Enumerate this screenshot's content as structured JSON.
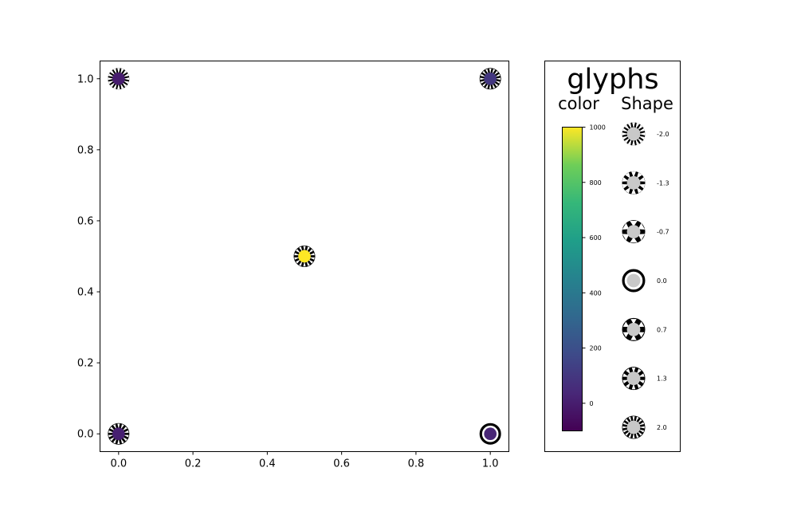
{
  "chart_data": [
    {
      "type": "scatter",
      "title": "",
      "xlabel": "",
      "ylabel": "",
      "xlim": [
        -0.05,
        1.05
      ],
      "ylim": [
        -0.05,
        1.05
      ],
      "grid": false,
      "x_ticks": [
        "0.0",
        "0.2",
        "0.4",
        "0.6",
        "0.8",
        "1.0"
      ],
      "y_ticks": [
        "0.0",
        "0.2",
        "0.4",
        "0.6",
        "0.8",
        "1.0"
      ],
      "points": [
        {
          "x": 0.0,
          "y": 1.0,
          "color": 0,
          "shape": -2.0
        },
        {
          "x": 1.0,
          "y": 1.0,
          "color": 100,
          "shape": 2.0
        },
        {
          "x": 0.5,
          "y": 0.5,
          "color": 1000,
          "shape": 1.7
        },
        {
          "x": 0.0,
          "y": 0.0,
          "color": 10,
          "shape": 1.8
        },
        {
          "x": 1.0,
          "y": 0.0,
          "color": 30,
          "shape": 0.0
        }
      ]
    },
    {
      "type": "legend",
      "title": "glyphs",
      "color_title": "color",
      "shape_title": "Shape",
      "colormap": "viridis",
      "colorbar_ticks": [
        "1000",
        "800",
        "600",
        "400",
        "200",
        "0"
      ],
      "colorbar_range": [
        -100,
        1000
      ],
      "shape_legend": [
        "-2.0",
        "-1.3",
        "-0.7",
        "0.0",
        "0.7",
        "1.3",
        "2.0"
      ]
    }
  ]
}
